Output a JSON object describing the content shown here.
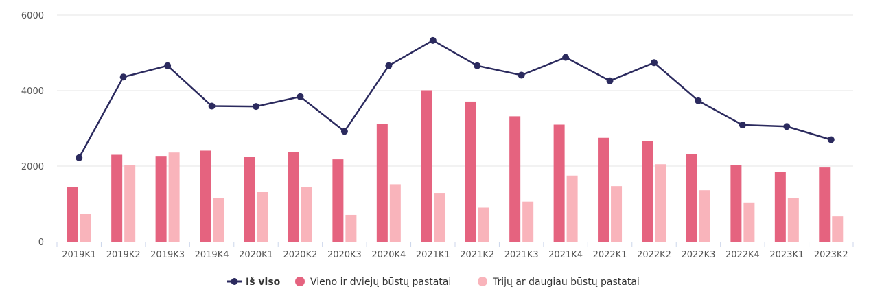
{
  "chart_data": {
    "type": "bar",
    "categories": [
      "2019K1",
      "2019K2",
      "2019K3",
      "2019K4",
      "2020K1",
      "2020K2",
      "2020K3",
      "2020K4",
      "2021K1",
      "2021K2",
      "2021K3",
      "2021K4",
      "2022K1",
      "2022K2",
      "2022K3",
      "2022K4",
      "2023K1",
      "2023K2"
    ],
    "ylim": [
      0,
      6000
    ],
    "yticks": [
      0,
      2000,
      4000,
      6000
    ],
    "grid": true,
    "legend": "bottom-center",
    "series": [
      {
        "name": "Iš viso",
        "kind": "line",
        "color": "#2b2a5e",
        "values": [
          2220,
          4360,
          4660,
          3590,
          3580,
          3840,
          2920,
          4660,
          5330,
          4660,
          4410,
          4880,
          4260,
          4740,
          3730,
          3090,
          3050,
          2700
        ]
      },
      {
        "name": "Vieno ir dviejų būstų pastatai",
        "kind": "bar",
        "color": "#e5637f",
        "values": [
          1450,
          2300,
          2270,
          2410,
          2250,
          2370,
          2180,
          3120,
          4010,
          3710,
          3320,
          3100,
          2750,
          2660,
          2320,
          2030,
          1840,
          1980
        ]
      },
      {
        "name": "Trijų ar daugiau būstų pastatai",
        "kind": "bar",
        "color": "#f9b4bb",
        "values": [
          740,
          2030,
          2360,
          1150,
          1310,
          1450,
          710,
          1520,
          1290,
          900,
          1060,
          1750,
          1470,
          2050,
          1360,
          1040,
          1150,
          670
        ]
      }
    ]
  }
}
